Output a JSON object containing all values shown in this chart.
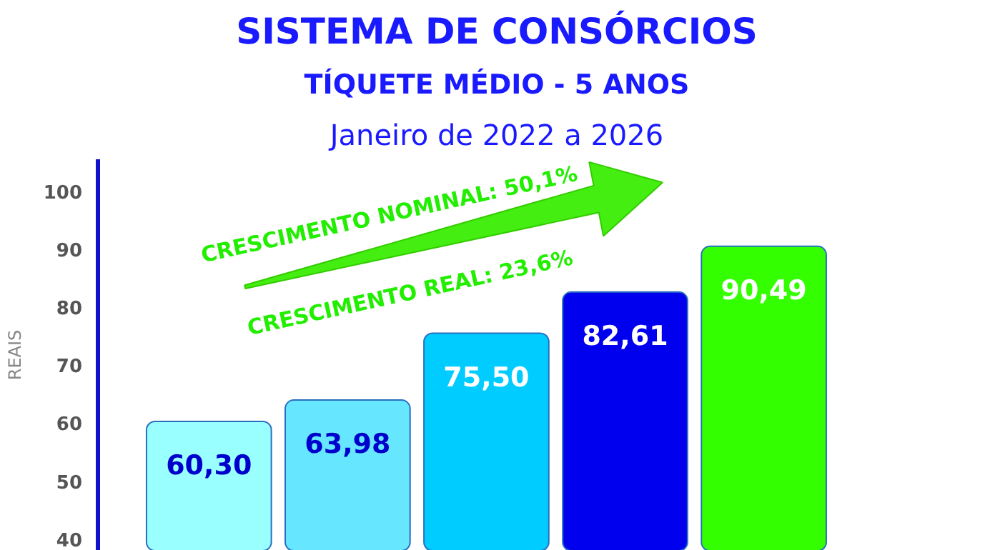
{
  "chart_data": {
    "type": "bar",
    "title": "SISTEMA DE CONSÓRCIOS",
    "subtitle": "TÍQUETE MÉDIO - 5 ANOS",
    "annotations": [
      "Janeiro de 2022 a 2026",
      "CRESCIMENTO NOMINAL: 50,1%",
      "CRESCIMENTO REAL: 23,6%"
    ],
    "ylabel": "REAIS",
    "categories": [
      null,
      null,
      null,
      null,
      null
    ],
    "values": [
      60.3,
      63.98,
      75.5,
      82.61,
      90.49
    ],
    "colors": [
      "#99ffff",
      "#66e6ff",
      "#00ccff",
      "#0000ee",
      "#33ff00"
    ],
    "value_labels": [
      "60,30",
      "63,98",
      "75,50",
      "82,61",
      "90,49"
    ],
    "ylim": [
      38,
      105.5
    ],
    "yticks": [
      40,
      50,
      60,
      70,
      80,
      90,
      100
    ],
    "grid": false
  }
}
